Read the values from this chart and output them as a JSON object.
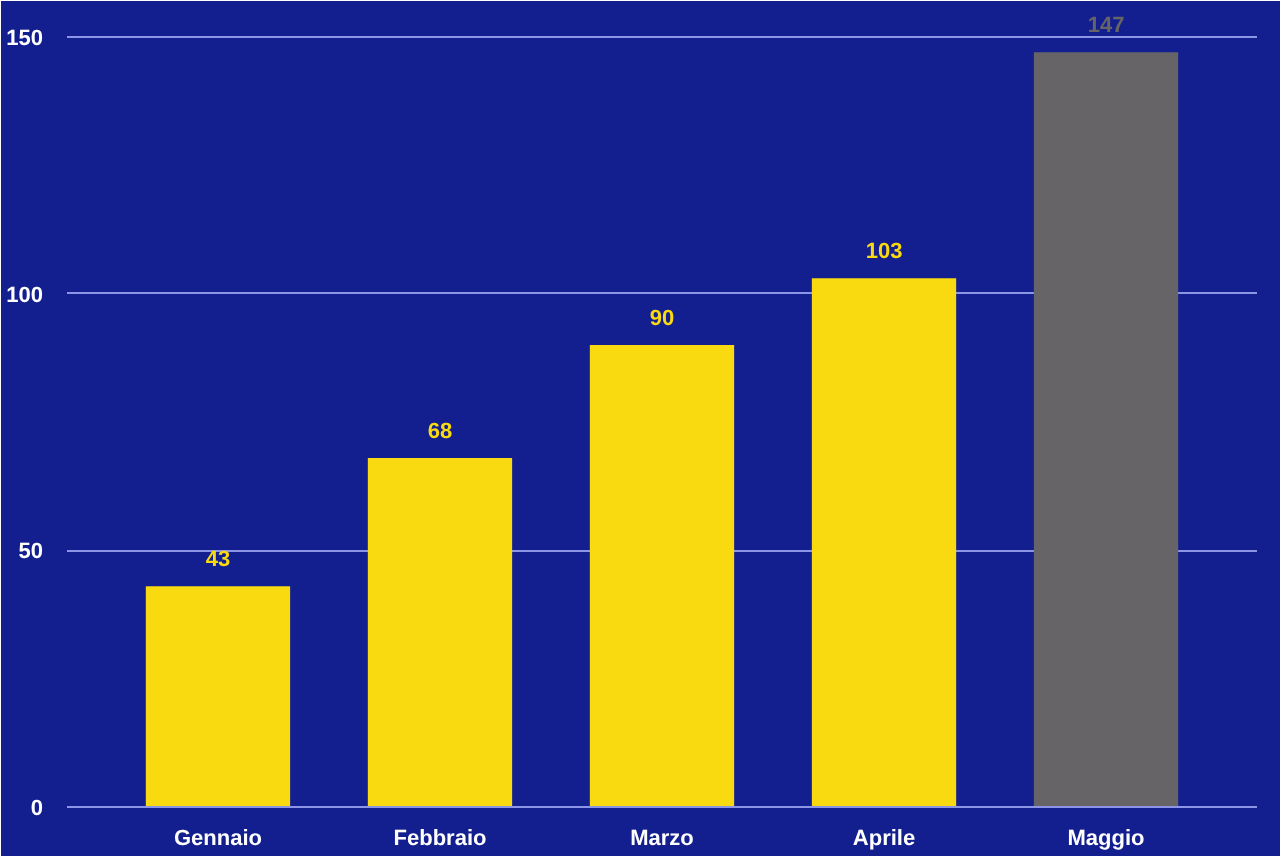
{
  "chart_data": {
    "type": "bar",
    "categories": [
      "Gennaio",
      "Febbraio",
      "Marzo",
      "Aprile",
      "Maggio"
    ],
    "values": [
      43,
      68,
      90,
      103,
      147
    ],
    "colors": [
      "#f9d90f",
      "#f9d90f",
      "#f9d90f",
      "#f9d90f",
      "#676467"
    ],
    "ylim": [
      0,
      157
    ],
    "yticks": [
      0,
      50,
      100,
      150
    ],
    "grid": "y",
    "data_labels": true
  }
}
